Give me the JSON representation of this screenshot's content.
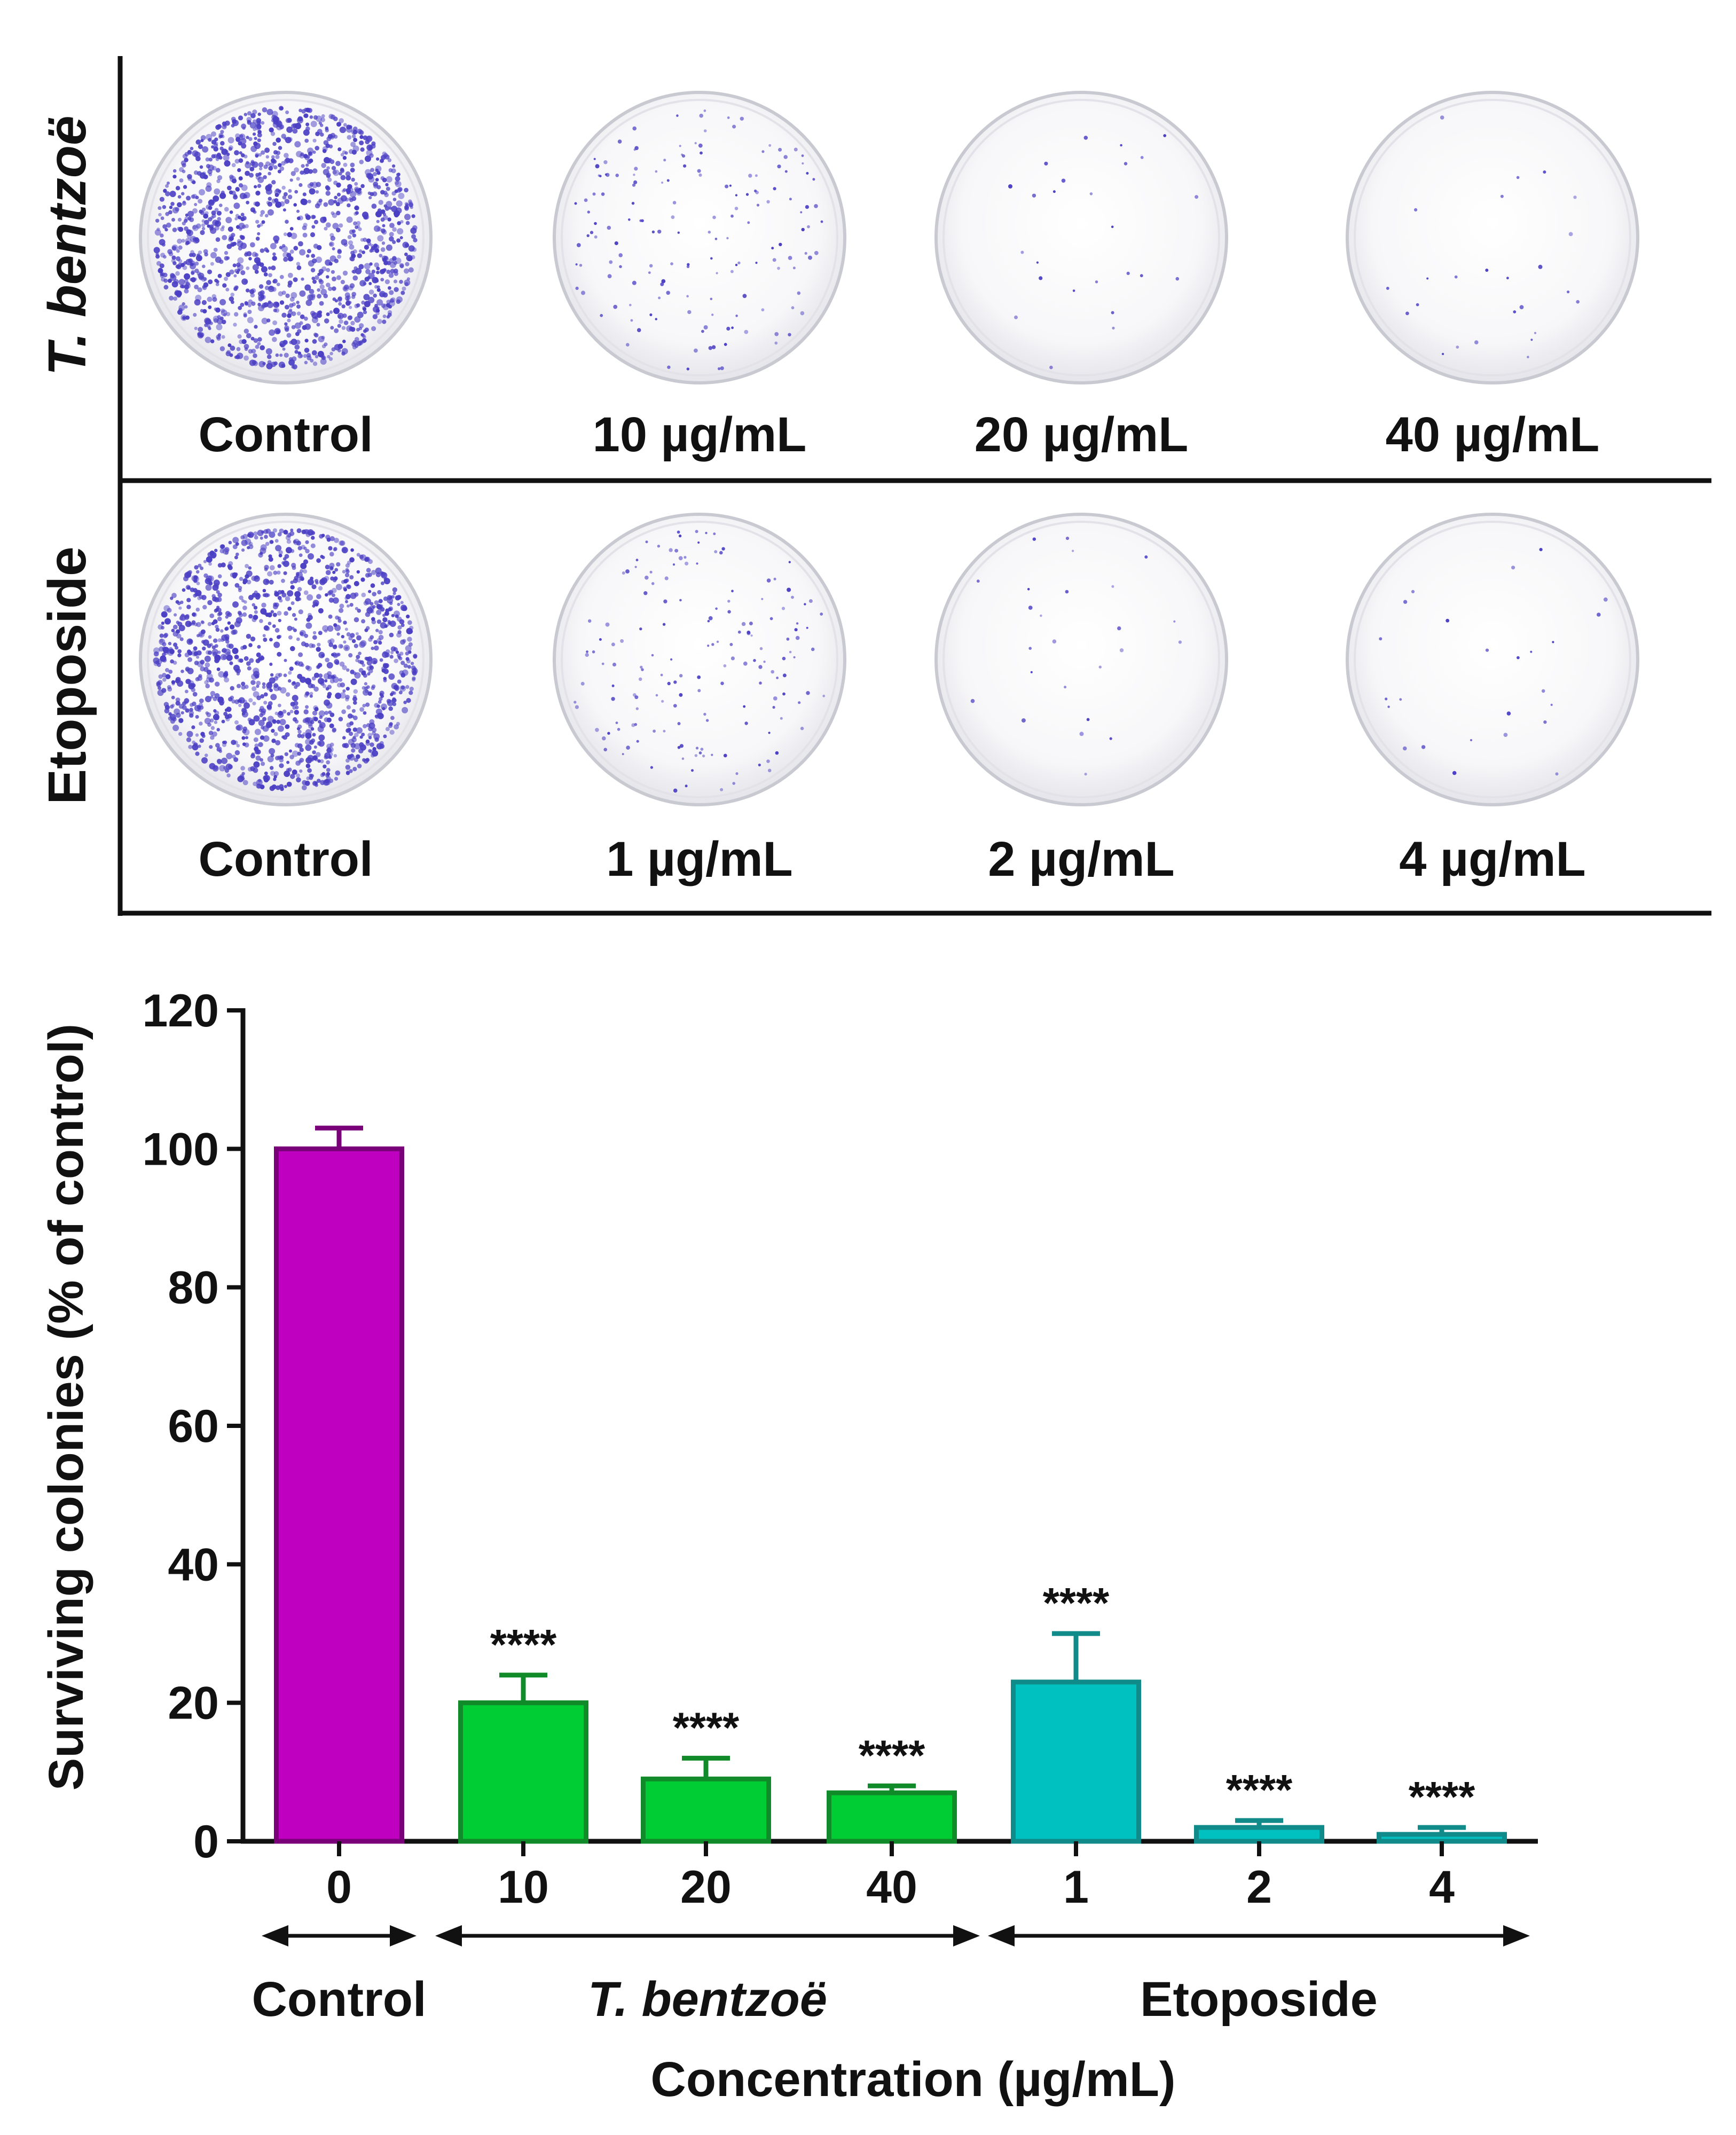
{
  "plates": {
    "rows": [
      {
        "label": "T. bentzoë",
        "label_italic": true,
        "plates": [
          {
            "label": "Control",
            "colony_density": "high"
          },
          {
            "label": "10 µg/mL",
            "colony_density": "low"
          },
          {
            "label": "20 µg/mL",
            "colony_density": "very-low"
          },
          {
            "label": "40 µg/mL",
            "colony_density": "very-low"
          }
        ]
      },
      {
        "label": "Etoposide",
        "label_italic": false,
        "plates": [
          {
            "label": "Control",
            "colony_density": "high"
          },
          {
            "label": "1 µg/mL",
            "colony_density": "low"
          },
          {
            "label": "2 µg/mL",
            "colony_density": "very-low"
          },
          {
            "label": "4 µg/mL",
            "colony_density": "very-low"
          }
        ]
      }
    ],
    "colony_color": "#4b3fc4"
  },
  "chart_data": {
    "type": "bar",
    "categories": [
      "0",
      "10",
      "20",
      "40",
      "1",
      "2",
      "4"
    ],
    "values": [
      100,
      20,
      9,
      7,
      23,
      2,
      1
    ],
    "errors": [
      3,
      4,
      3,
      1,
      7,
      1,
      1
    ],
    "significance": [
      "",
      "****",
      "****",
      "****",
      "****",
      "****",
      "****"
    ],
    "colors": [
      "#c000c0",
      "#00cc33",
      "#00cc33",
      "#00cc33",
      "#00c0c0",
      "#00c0c0",
      "#00c0c0"
    ],
    "edge_colors": [
      "#7a007a",
      "#118a2a",
      "#118a2a",
      "#118a2a",
      "#118a8a",
      "#118a8a",
      "#118a8a"
    ],
    "ylabel": "Surviving colonies (% of control)",
    "xlabel": "Concentration (µg/mL)",
    "ylim": [
      0,
      120
    ],
    "yticks": [
      0,
      20,
      40,
      60,
      80,
      100,
      120
    ],
    "groups": [
      {
        "label": "Control",
        "italic": false,
        "from": 0,
        "to": 0
      },
      {
        "label": "T. bentzoë",
        "italic": true,
        "from": 1,
        "to": 3
      },
      {
        "label": "Etoposide",
        "italic": false,
        "from": 4,
        "to": 6
      }
    ],
    "grid": false
  }
}
